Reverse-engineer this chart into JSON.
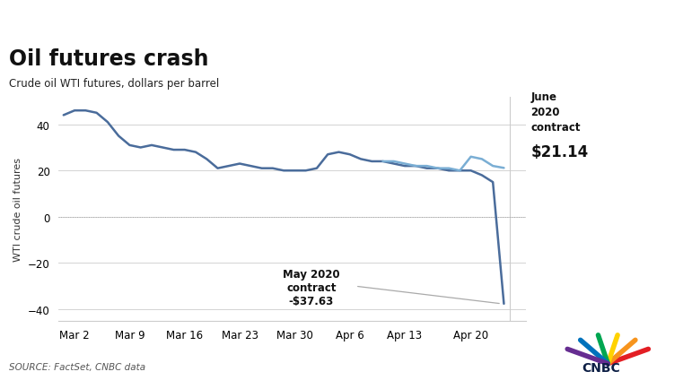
{
  "title": "Oil futures crash",
  "subtitle": "Crude oil WTI futures, dollars per barrel",
  "ylabel": "WTI crude oil futures",
  "source": "SOURCE: FactSet, CNBC data",
  "header_color": "#0d1f45",
  "may_color": "#4a6c9b",
  "june_color": "#7aaed4",
  "background_color": "#ffffff",
  "grid_color": "#cccccc",
  "ylim": [
    -45,
    52
  ],
  "yticks": [
    -40,
    -20,
    0,
    20,
    40
  ],
  "xtick_labels": [
    "Mar 2",
    "Mar 9",
    "Mar 16",
    "Mar 23",
    "Mar 30",
    "Apr 6",
    "Apr 13",
    "Apr 20"
  ],
  "xtick_positions": [
    1,
    6,
    11,
    16,
    21,
    26,
    31,
    37
  ],
  "may_data_x": [
    0,
    1,
    2,
    3,
    4,
    5,
    6,
    7,
    8,
    9,
    10,
    11,
    12,
    13,
    14,
    15,
    16,
    17,
    18,
    19,
    20,
    21,
    22,
    23,
    24,
    25,
    26,
    27,
    28,
    29,
    30,
    31,
    32,
    33,
    34,
    35,
    36,
    37,
    38,
    39,
    40
  ],
  "may_data_y": [
    44,
    46,
    46,
    45,
    41,
    35,
    31,
    30,
    31,
    30,
    29,
    29,
    28,
    25,
    21,
    22,
    23,
    22,
    21,
    21,
    20,
    20,
    20,
    21,
    27,
    28,
    27,
    25,
    24,
    24,
    23,
    22,
    22,
    21,
    21,
    20,
    20,
    20,
    18,
    15,
    -37.63
  ],
  "june_data_x": [
    29,
    30,
    31,
    32,
    33,
    34,
    35,
    36,
    37,
    38,
    39,
    40
  ],
  "june_data_y": [
    24,
    24,
    23,
    22,
    22,
    21,
    21,
    20,
    26,
    25,
    22,
    21.14
  ],
  "xlim": [
    -0.5,
    42
  ],
  "vline_x": 40.5
}
